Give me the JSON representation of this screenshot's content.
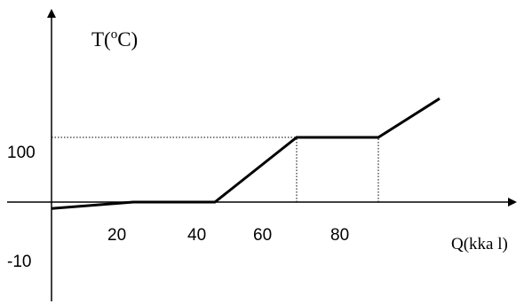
{
  "chart_data": {
    "type": "line",
    "title": "",
    "ylabel_prefix": "T(",
    "ylabel_sup": "o",
    "ylabel_suffix": "C)",
    "xlabel": "Q(kka l)",
    "x_ticks": [
      "20",
      "40",
      "60",
      "80"
    ],
    "y_ticks": [
      "100",
      "-10"
    ],
    "series": [
      {
        "points": [
          {
            "x": 0,
            "y": -10
          },
          {
            "x": 20,
            "y": 0
          },
          {
            "x": 40,
            "y": 0
          },
          {
            "x": 60,
            "y": 100
          },
          {
            "x": 80,
            "y": 100
          },
          {
            "x": 95,
            "y": 160
          }
        ]
      }
    ],
    "guides": [
      {
        "type": "horizontal",
        "y": 100,
        "from_x": 0,
        "to_x": 60
      },
      {
        "type": "vertical",
        "x": 60,
        "from_y": 0,
        "to_y": 100
      },
      {
        "type": "vertical",
        "x": 80,
        "from_y": 0,
        "to_y": 100
      }
    ],
    "xlim": [
      0,
      100
    ],
    "ylim": [
      -10,
      160
    ],
    "grid": false,
    "legend": "none"
  }
}
